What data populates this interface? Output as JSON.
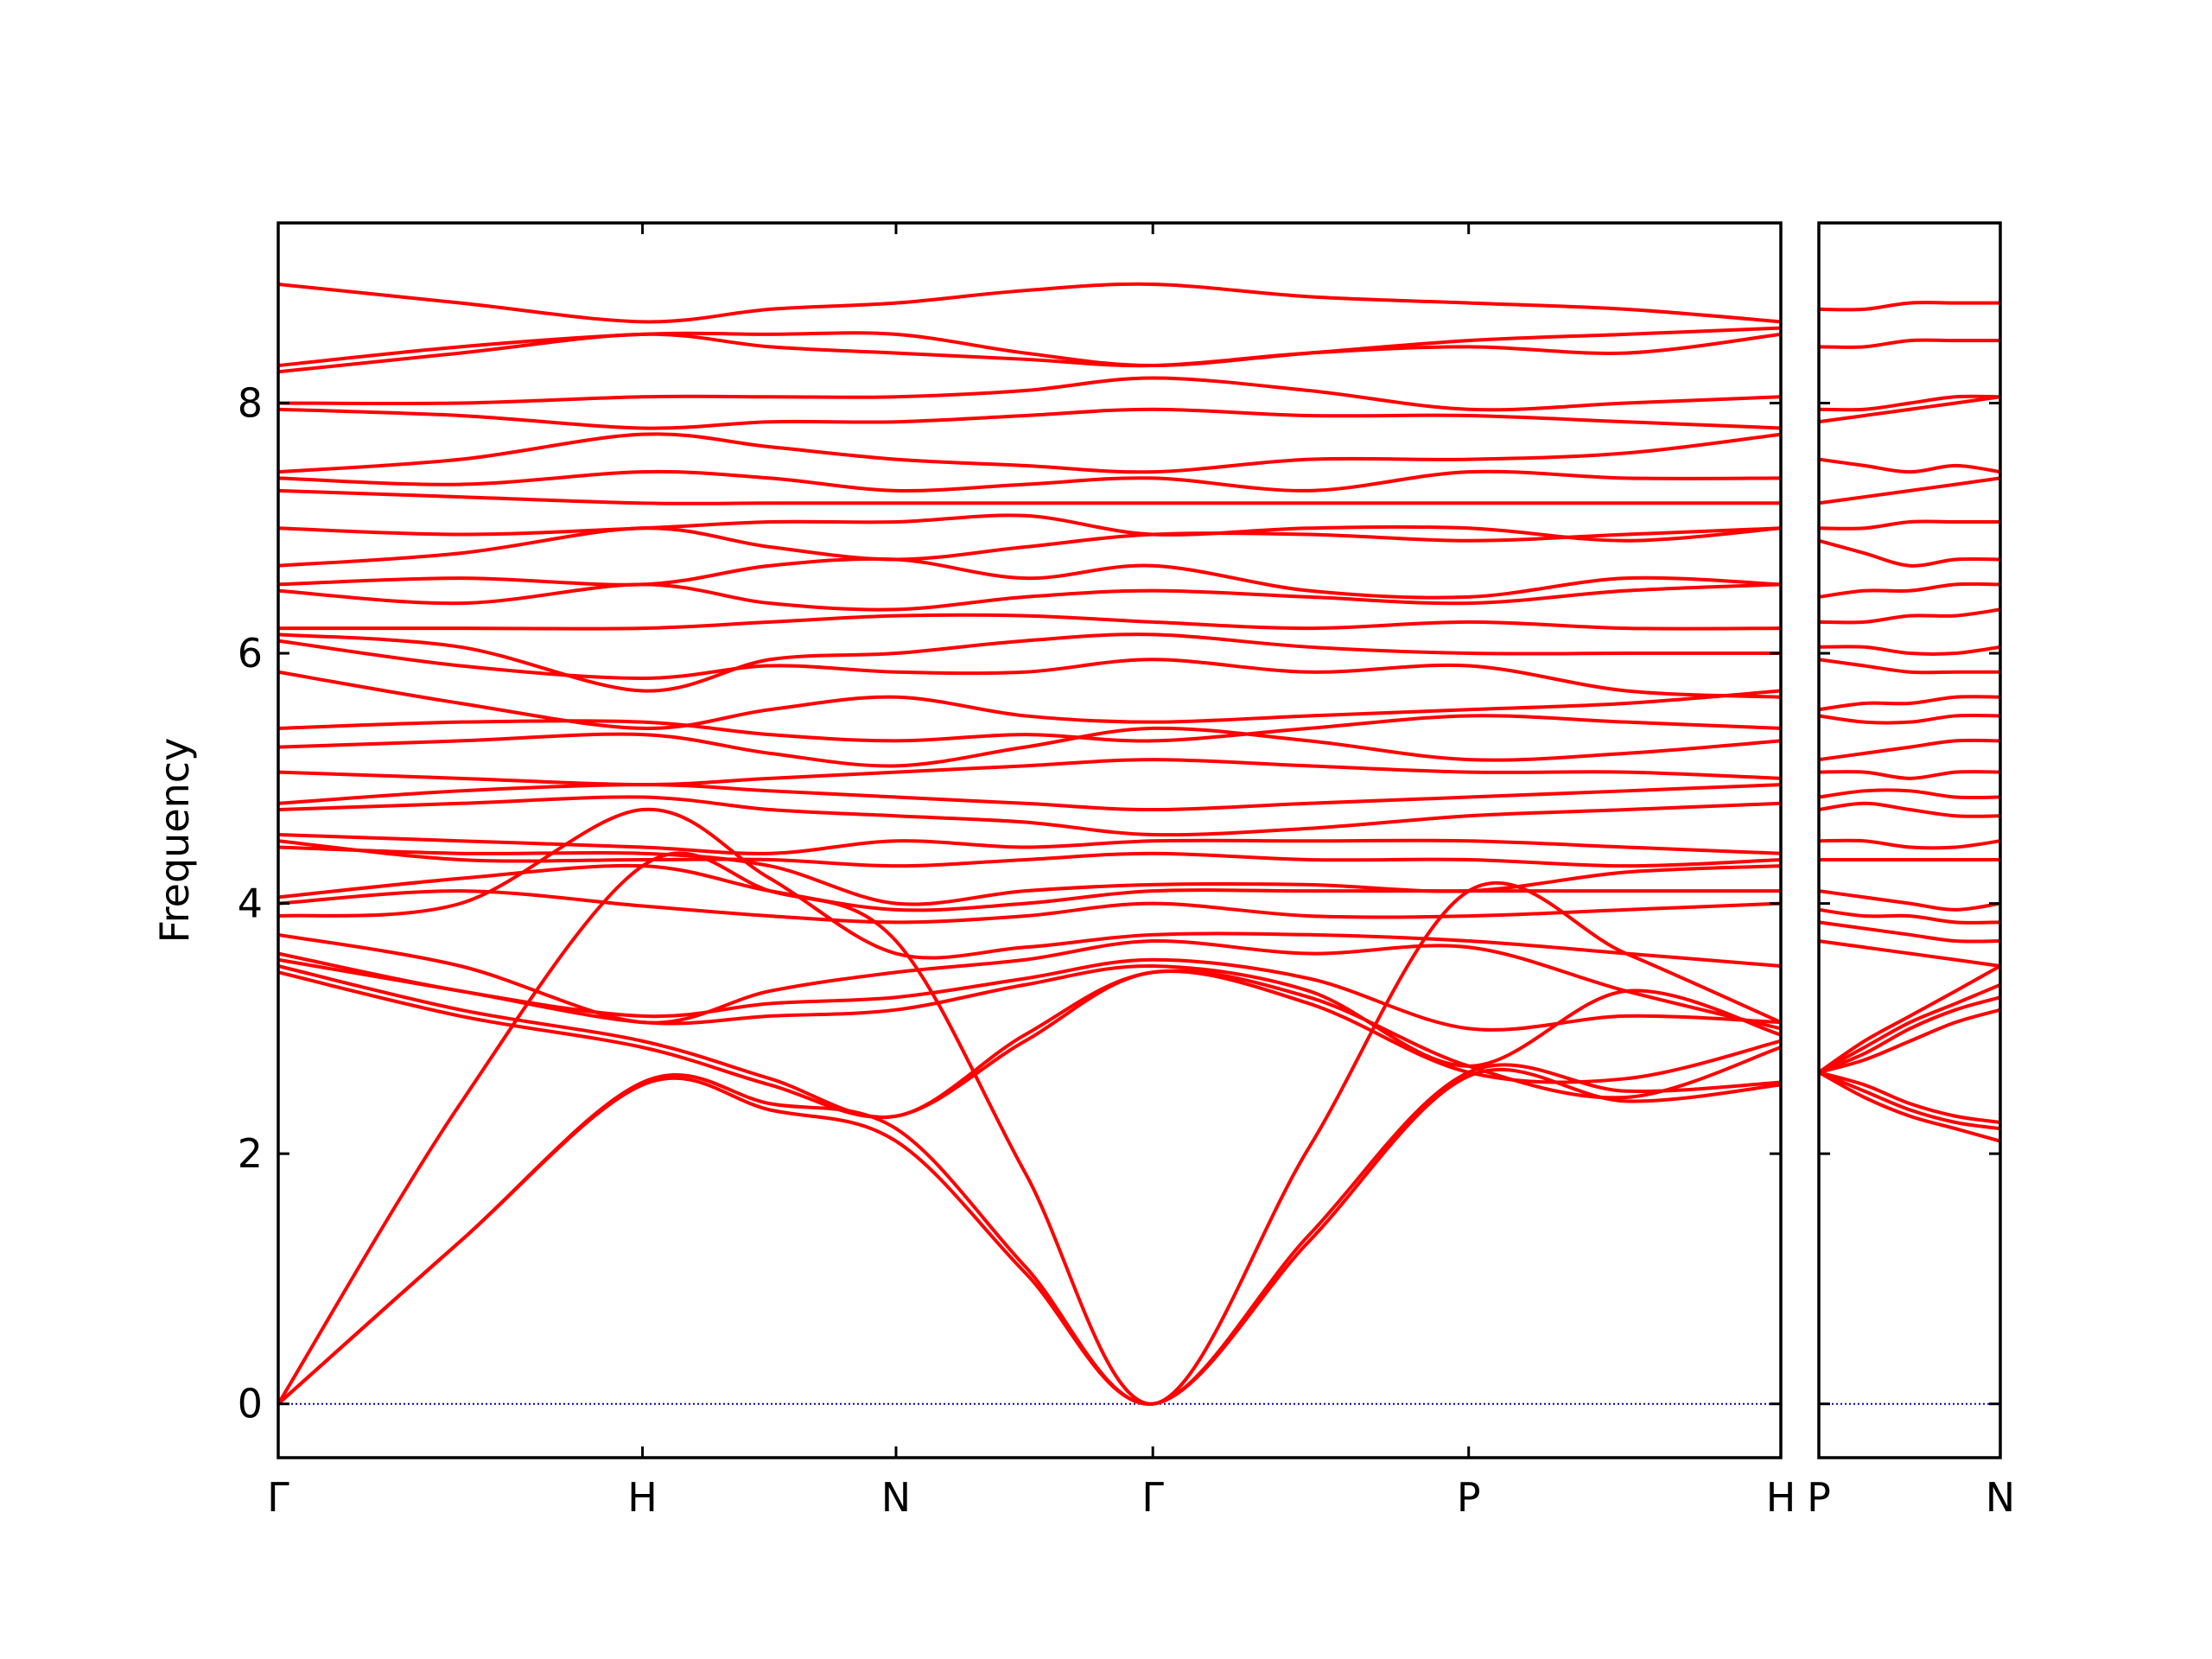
{
  "chart_data": [
    {
      "type": "line",
      "y_label": "Frequency",
      "color": "#ff0000",
      "y_tick_labels": true,
      "hline": 0,
      "hline_color": "#0000cc",
      "x": [
        0,
        0.5,
        1,
        1.35,
        1.696,
        2.05,
        2.401,
        2.83,
        3.268,
        3.7,
        4.125
      ],
      "xlim": [
        0,
        4.125
      ],
      "xticks": [
        {
          "value": 0,
          "label": "Γ"
        },
        {
          "value": 1,
          "label": "H"
        },
        {
          "value": 1.696,
          "label": "N"
        },
        {
          "value": 2.401,
          "label": "Γ"
        },
        {
          "value": 3.268,
          "label": "P"
        },
        {
          "value": 4.125,
          "label": "H"
        }
      ],
      "ylim": [
        -0.43,
        9.44
      ],
      "yticks": [
        0,
        2,
        4,
        6,
        8
      ],
      "series": [
        {
          "values": [
            0,
            1.3,
            2.55,
            2.35,
            2.1,
            1.05,
            0,
            1.3,
            2.62,
            2.42,
            2.55
          ]
        },
        {
          "values": [
            0,
            1.3,
            2.57,
            2.4,
            2.2,
            1.1,
            0,
            1.35,
            2.65,
            2.5,
            2.57
          ]
        },
        {
          "values": [
            0,
            2.4,
            4.3,
            4.1,
            3.7,
            1.85,
            0,
            2.05,
            4.1,
            3.6,
            3.05
          ]
        },
        {
          "values": [
            3.45,
            3.1,
            2.85,
            2.55,
            2.3,
            2.9,
            3.45,
            3.2,
            2.65,
            2.6,
            2.9
          ]
        },
        {
          "values": [
            3.5,
            3.15,
            2.9,
            2.6,
            2.3,
            2.95,
            3.45,
            3.25,
            2.7,
            2.45,
            2.85
          ]
        },
        {
          "values": [
            3.55,
            3.3,
            3.05,
            3.1,
            3.15,
            3.35,
            3.5,
            3.3,
            2.7,
            3.3,
            2.95
          ]
        },
        {
          "values": [
            3.6,
            3.3,
            3.1,
            3.2,
            3.25,
            3.4,
            3.55,
            3.4,
            3.0,
            3.1,
            3.05
          ]
        },
        {
          "values": [
            3.75,
            3.5,
            3.05,
            3.3,
            3.45,
            3.55,
            3.7,
            3.6,
            3.65,
            3.3,
            3.0
          ]
        },
        {
          "values": [
            3.9,
            4.0,
            4.75,
            4.2,
            3.6,
            3.65,
            3.75,
            3.75,
            3.7,
            3.6,
            3.5
          ]
        },
        {
          "values": [
            4.0,
            4.1,
            3.98,
            3.9,
            3.85,
            3.9,
            4.0,
            3.9,
            3.9,
            3.95,
            4.0
          ]
        },
        {
          "values": [
            4.05,
            4.2,
            4.3,
            4.1,
            3.95,
            4.0,
            4.1,
            4.1,
            4.1,
            4.1,
            4.1
          ]
        },
        {
          "values": [
            4.45,
            4.4,
            4.4,
            4.3,
            4.0,
            4.1,
            4.15,
            4.15,
            4.1,
            4.25,
            4.3
          ]
        },
        {
          "values": [
            4.5,
            4.35,
            4.35,
            4.35,
            4.3,
            4.35,
            4.4,
            4.35,
            4.35,
            4.3,
            4.35
          ]
        },
        {
          "values": [
            4.55,
            4.5,
            4.45,
            4.4,
            4.5,
            4.45,
            4.5,
            4.5,
            4.5,
            4.45,
            4.4
          ]
        },
        {
          "values": [
            4.75,
            4.8,
            4.85,
            4.75,
            4.7,
            4.65,
            4.55,
            4.6,
            4.7,
            4.75,
            4.8
          ]
        },
        {
          "values": [
            4.8,
            4.9,
            4.95,
            4.9,
            4.85,
            4.8,
            4.75,
            4.8,
            4.85,
            4.9,
            4.95
          ]
        },
        {
          "values": [
            5.05,
            5.0,
            4.95,
            5.0,
            5.05,
            5.1,
            5.15,
            5.1,
            5.05,
            5.05,
            5.0
          ]
        },
        {
          "values": [
            5.25,
            5.3,
            5.35,
            5.2,
            5.1,
            5.25,
            5.4,
            5.3,
            5.15,
            5.2,
            5.3
          ]
        },
        {
          "values": [
            5.4,
            5.45,
            5.45,
            5.35,
            5.3,
            5.35,
            5.3,
            5.4,
            5.5,
            5.45,
            5.4
          ]
        },
        {
          "values": [
            5.85,
            5.6,
            5.4,
            5.55,
            5.65,
            5.5,
            5.45,
            5.5,
            5.55,
            5.6,
            5.7
          ]
        },
        {
          "values": [
            6.1,
            5.9,
            5.8,
            5.9,
            5.85,
            5.85,
            5.95,
            5.85,
            5.9,
            5.7,
            5.65
          ]
        },
        {
          "values": [
            6.15,
            6.05,
            5.7,
            5.95,
            6.0,
            6.1,
            6.15,
            6.05,
            6.0,
            6.0,
            6.0
          ]
        },
        {
          "values": [
            6.2,
            6.2,
            6.2,
            6.25,
            6.3,
            6.3,
            6.25,
            6.2,
            6.25,
            6.2,
            6.2
          ]
        },
        {
          "values": [
            6.5,
            6.4,
            6.55,
            6.4,
            6.35,
            6.45,
            6.5,
            6.45,
            6.4,
            6.5,
            6.55
          ]
        },
        {
          "values": [
            6.55,
            6.6,
            6.55,
            6.7,
            6.75,
            6.6,
            6.7,
            6.5,
            6.45,
            6.6,
            6.55
          ]
        },
        {
          "values": [
            6.7,
            6.8,
            7.0,
            6.85,
            6.75,
            6.85,
            6.95,
            6.95,
            6.9,
            6.95,
            7.0
          ]
        },
        {
          "values": [
            7.0,
            6.95,
            7.0,
            7.05,
            7.05,
            7.1,
            6.95,
            7.0,
            7.0,
            6.9,
            7.0
          ]
        },
        {
          "values": [
            7.3,
            7.25,
            7.2,
            7.2,
            7.2,
            7.2,
            7.2,
            7.2,
            7.2,
            7.2,
            7.2
          ]
        },
        {
          "values": [
            7.4,
            7.35,
            7.45,
            7.4,
            7.3,
            7.35,
            7.4,
            7.3,
            7.45,
            7.4,
            7.4
          ]
        },
        {
          "values": [
            7.45,
            7.55,
            7.75,
            7.65,
            7.55,
            7.5,
            7.45,
            7.55,
            7.55,
            7.6,
            7.75
          ]
        },
        {
          "values": [
            7.95,
            7.9,
            7.8,
            7.85,
            7.85,
            7.9,
            7.95,
            7.9,
            7.9,
            7.85,
            7.8
          ]
        },
        {
          "values": [
            8.0,
            8.0,
            8.05,
            8.05,
            8.05,
            8.1,
            8.2,
            8.1,
            7.95,
            8.0,
            8.05
          ]
        },
        {
          "values": [
            8.25,
            8.4,
            8.55,
            8.45,
            8.4,
            8.35,
            8.3,
            8.4,
            8.45,
            8.4,
            8.55
          ]
        },
        {
          "values": [
            8.3,
            8.45,
            8.55,
            8.55,
            8.55,
            8.4,
            8.3,
            8.4,
            8.5,
            8.55,
            8.6
          ]
        },
        {
          "values": [
            8.95,
            8.8,
            8.65,
            8.75,
            8.8,
            8.9,
            8.95,
            8.85,
            8.8,
            8.75,
            8.65
          ]
        }
      ]
    },
    {
      "type": "line",
      "color": "#ff0000",
      "y_tick_labels": false,
      "hline": 0,
      "hline_color": "#0000cc",
      "x": [
        0,
        0.125,
        0.25,
        0.375,
        0.498
      ],
      "xlim": [
        0,
        0.498
      ],
      "xticks": [
        {
          "value": 0,
          "label": "P"
        },
        {
          "value": 0.498,
          "label": "N"
        }
      ],
      "ylim": [
        -0.43,
        9.44
      ],
      "yticks": [
        0,
        2,
        4,
        6,
        8
      ],
      "series": [
        {
          "values": [
            2.65,
            2.45,
            2.3,
            2.2,
            2.1
          ]
        },
        {
          "values": [
            2.65,
            2.5,
            2.35,
            2.25,
            2.2
          ]
        },
        {
          "values": [
            2.65,
            2.55,
            2.4,
            2.3,
            2.25
          ]
        },
        {
          "values": [
            2.65,
            2.75,
            2.9,
            3.05,
            3.15
          ]
        },
        {
          "values": [
            2.65,
            2.8,
            3.0,
            3.15,
            3.25
          ]
        },
        {
          "values": [
            2.65,
            2.85,
            3.05,
            3.2,
            3.35
          ]
        },
        {
          "values": [
            2.65,
            2.9,
            3.1,
            3.3,
            3.5
          ]
        },
        {
          "values": [
            3.7,
            3.65,
            3.6,
            3.55,
            3.5
          ]
        },
        {
          "values": [
            3.85,
            3.8,
            3.75,
            3.7,
            3.7
          ]
        },
        {
          "values": [
            3.95,
            3.9,
            3.9,
            3.85,
            3.85
          ]
        },
        {
          "values": [
            4.1,
            4.05,
            4.0,
            3.95,
            4.0
          ]
        },
        {
          "values": [
            4.35,
            4.35,
            4.35,
            4.35,
            4.35
          ]
        },
        {
          "values": [
            4.5,
            4.5,
            4.45,
            4.45,
            4.5
          ]
        },
        {
          "values": [
            4.75,
            4.8,
            4.75,
            4.7,
            4.7
          ]
        },
        {
          "values": [
            4.85,
            4.9,
            4.9,
            4.85,
            4.85
          ]
        },
        {
          "values": [
            5.05,
            5.05,
            5.0,
            5.05,
            5.05
          ]
        },
        {
          "values": [
            5.15,
            5.2,
            5.25,
            5.3,
            5.3
          ]
        },
        {
          "values": [
            5.5,
            5.45,
            5.45,
            5.5,
            5.5
          ]
        },
        {
          "values": [
            5.55,
            5.6,
            5.6,
            5.65,
            5.65
          ]
        },
        {
          "values": [
            5.95,
            5.9,
            5.85,
            5.85,
            5.85
          ]
        },
        {
          "values": [
            6.05,
            6.05,
            6.0,
            6.0,
            6.05
          ]
        },
        {
          "values": [
            6.25,
            6.25,
            6.3,
            6.3,
            6.35
          ]
        },
        {
          "values": [
            6.45,
            6.5,
            6.5,
            6.55,
            6.55
          ]
        },
        {
          "values": [
            6.9,
            6.8,
            6.7,
            6.75,
            6.75
          ]
        },
        {
          "values": [
            7.0,
            7.0,
            7.05,
            7.05,
            7.05
          ]
        },
        {
          "values": [
            7.2,
            7.25,
            7.3,
            7.35,
            7.4
          ]
        },
        {
          "values": [
            7.55,
            7.5,
            7.45,
            7.5,
            7.45
          ]
        },
        {
          "values": [
            7.85,
            7.9,
            7.95,
            8.0,
            8.05
          ]
        },
        {
          "values": [
            7.95,
            7.95,
            8.0,
            8.05,
            8.05
          ]
        },
        {
          "values": [
            8.45,
            8.45,
            8.5,
            8.5,
            8.5
          ]
        },
        {
          "values": [
            8.75,
            8.75,
            8.8,
            8.8,
            8.8
          ]
        }
      ]
    }
  ]
}
